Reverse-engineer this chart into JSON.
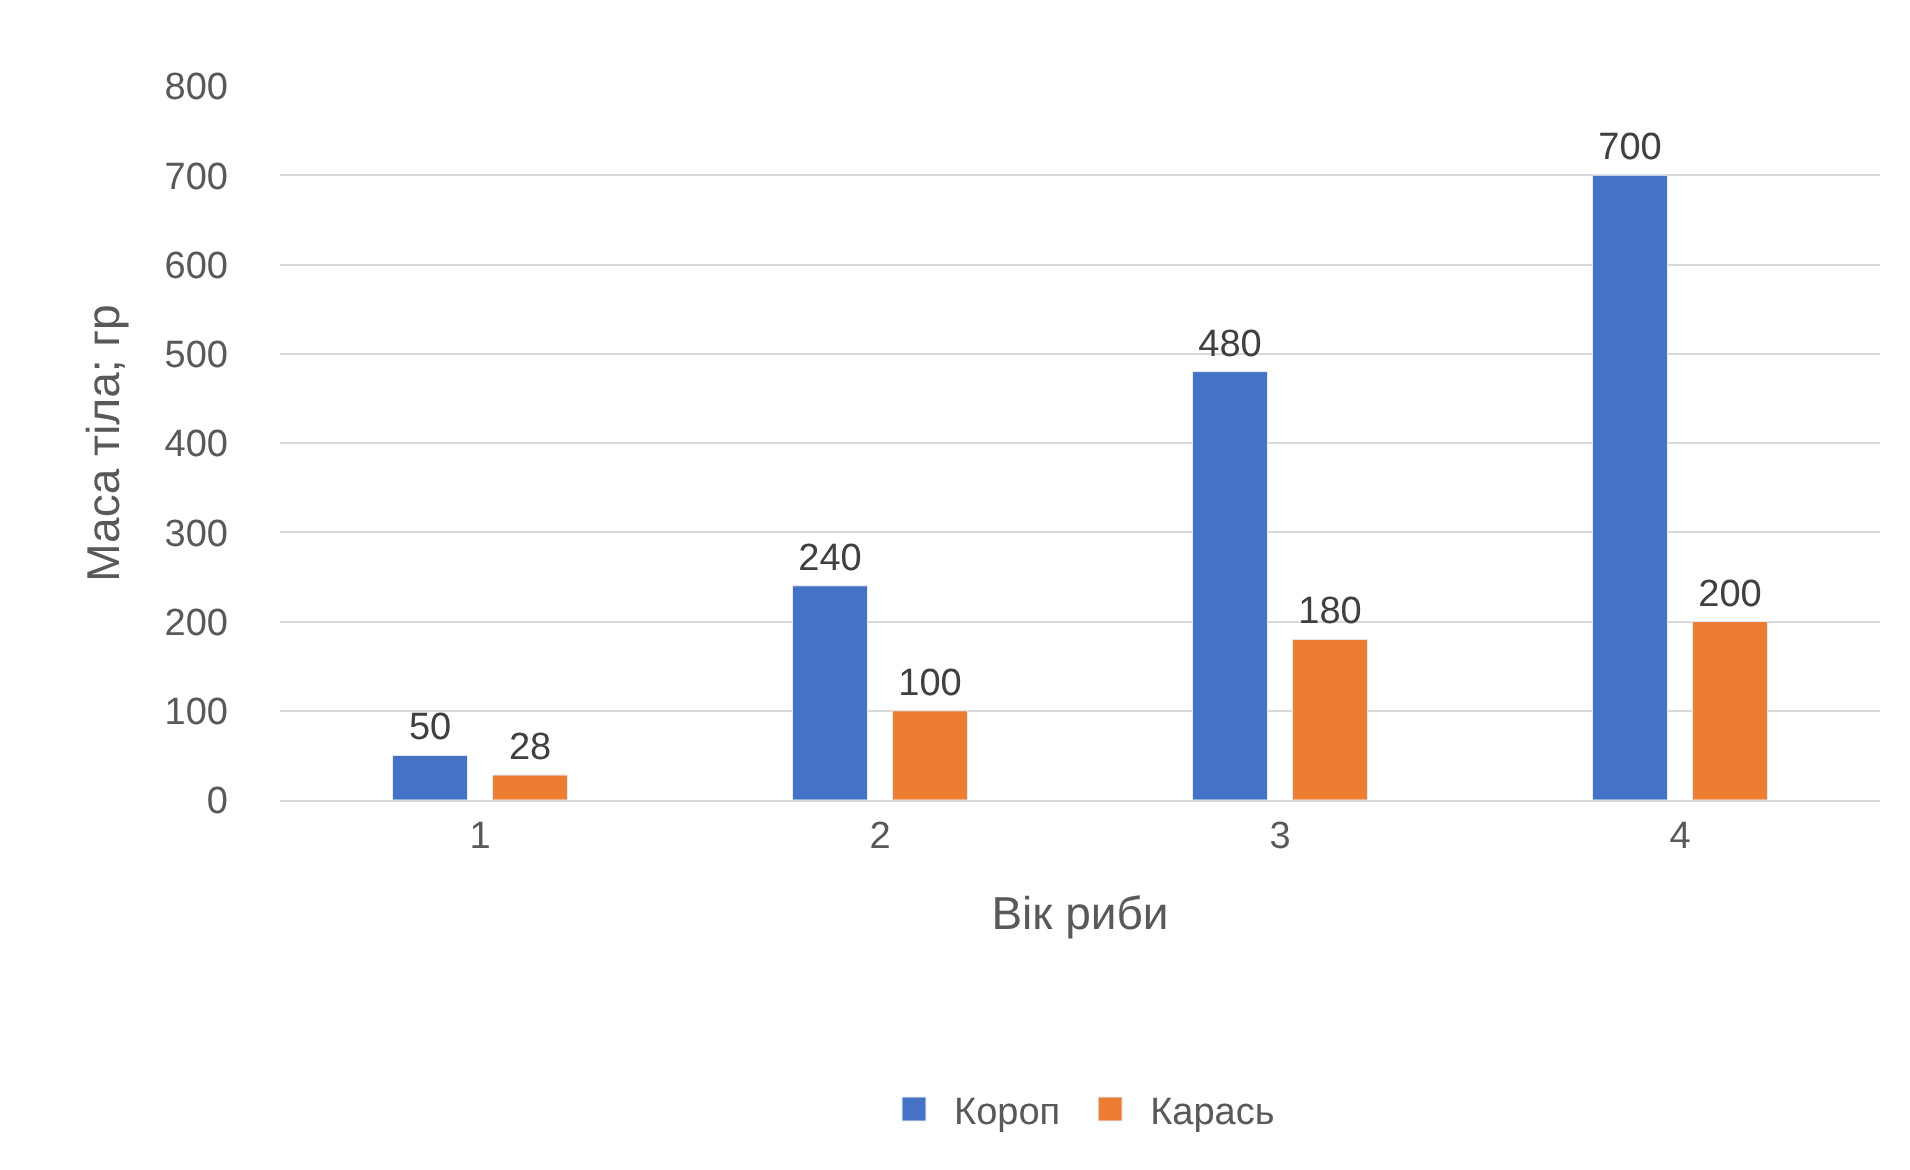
{
  "chart_data": {
    "type": "bar",
    "xlabel": "Вік риби",
    "ylabel": "Маса тіла; гр",
    "categories": [
      "1",
      "2",
      "3",
      "4"
    ],
    "series": [
      {
        "name": "Короп",
        "color": "#4472c4",
        "values": [
          50,
          240,
          480,
          700
        ]
      },
      {
        "name": "Карась",
        "color": "#ed7d31",
        "values": [
          28,
          100,
          180,
          200
        ]
      }
    ],
    "ylim": [
      0,
      800
    ],
    "yticks": [
      0,
      100,
      200,
      300,
      400,
      500,
      600,
      700,
      800
    ],
    "grid": "y",
    "legend": "bottom",
    "data_labels": true
  }
}
